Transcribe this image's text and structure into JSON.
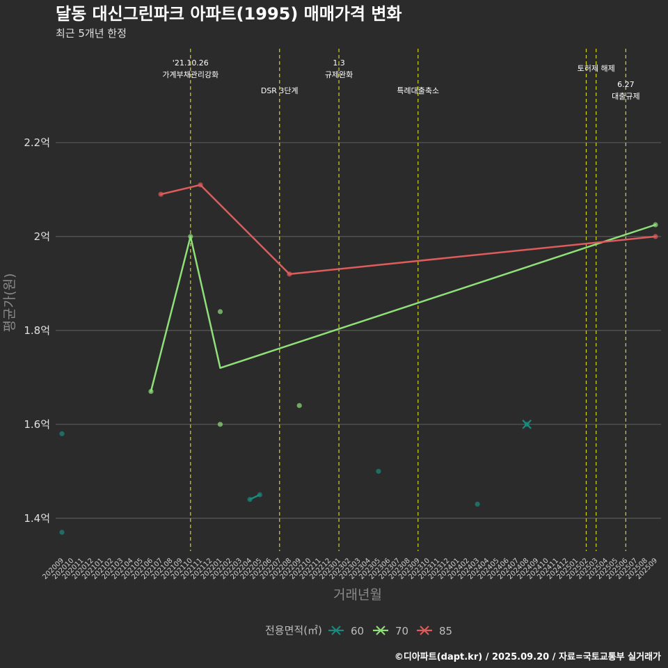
{
  "chart_data": {
    "type": "line",
    "title": "달동 대신그린파크 아파트(1995) 매매가격 변화",
    "subtitle": "최근 5개년 한정",
    "xlabel": "거래년월",
    "ylabel": "평균가(원)",
    "caption": "©디아파트(dapt.kr) / 2025.09.20 / 자료=국토교통부 실거래가",
    "legend_title": "전용면적(㎡)",
    "legend_position": "bottom",
    "grid": true,
    "ylim": [
      1.33,
      2.4
    ],
    "yticks": [
      1.4,
      1.6,
      1.8,
      2.0,
      2.2
    ],
    "ytick_labels": [
      "1.4억",
      "1.6억",
      "1.8억",
      "2억",
      "2.2억"
    ],
    "categories": [
      "202009",
      "202010",
      "202011",
      "202012",
      "202101",
      "202102",
      "202103",
      "202104",
      "202105",
      "202106",
      "202107",
      "202108",
      "202109",
      "202110",
      "202111",
      "202112",
      "202201",
      "202202",
      "202203",
      "202204",
      "202205",
      "202206",
      "202207",
      "202208",
      "202209",
      "202210",
      "202211",
      "202212",
      "202301",
      "202302",
      "202303",
      "202304",
      "202305",
      "202306",
      "202307",
      "202308",
      "202309",
      "202310",
      "202311",
      "202312",
      "202401",
      "202402",
      "202403",
      "202404",
      "202405",
      "202406",
      "202407",
      "202408",
      "202409",
      "202410",
      "202411",
      "202412",
      "202501",
      "202502",
      "202503",
      "202504",
      "202505",
      "202506",
      "202507",
      "202508",
      "202509"
    ],
    "series": [
      {
        "name": "60",
        "color": "#1b8a7e",
        "points": [
          [
            "202009",
            1.58
          ],
          [
            "202009",
            1.37
          ],
          [
            "202204",
            1.44
          ],
          [
            "202205",
            1.45
          ],
          [
            "202305",
            1.5
          ],
          [
            "202403",
            1.43
          ],
          [
            "202408",
            1.6
          ]
        ],
        "line": [
          [
            "202204",
            1.44
          ],
          [
            "202205",
            1.45
          ]
        ],
        "cross": [
          [
            "202408",
            1.6
          ]
        ]
      },
      {
        "name": "70",
        "color": "#90e07a",
        "points": [
          [
            "202106",
            1.67
          ],
          [
            "202110",
            2.0
          ],
          [
            "202201",
            1.84
          ],
          [
            "202201",
            1.6
          ],
          [
            "202209",
            1.64
          ],
          [
            "202509",
            2.025
          ]
        ],
        "line": [
          [
            "202106",
            1.67
          ],
          [
            "202110",
            2.0
          ],
          [
            "202201",
            1.72
          ],
          [
            "202509",
            2.025
          ]
        ]
      },
      {
        "name": "85",
        "color": "#e05c5c",
        "points": [
          [
            "202107",
            2.09
          ],
          [
            "202111",
            2.11
          ],
          [
            "202208",
            1.92
          ],
          [
            "202509",
            2.0
          ]
        ],
        "line": [
          [
            "202107",
            2.09
          ],
          [
            "202111",
            2.11
          ],
          [
            "202208",
            1.92
          ],
          [
            "202509",
            2.0
          ]
        ]
      }
    ],
    "events": [
      {
        "date": "202110",
        "label_lines": [
          "'21.10.26",
          "가계부채관리강화"
        ],
        "row": 0
      },
      {
        "date": "202207",
        "label_lines": [
          "DSR 3단계"
        ],
        "row": 2
      },
      {
        "date": "202301",
        "label_lines": [
          "1.3",
          "규제완화"
        ],
        "row": 0
      },
      {
        "date": "202309",
        "label_lines": [
          "특례대출축소"
        ],
        "row": 2
      },
      {
        "date": "202502",
        "label_lines": [],
        "row": 0
      },
      {
        "date": "202503",
        "label_lines": [
          "토허제 해제"
        ],
        "row": 1
      },
      {
        "date": "202506",
        "label_lines": [
          "6.27",
          "대출규제"
        ],
        "row": 3
      }
    ]
  },
  "colors": {
    "background": "#2b2b2b",
    "grid": "#5a5a5a",
    "event_line": "#d6d61a"
  }
}
